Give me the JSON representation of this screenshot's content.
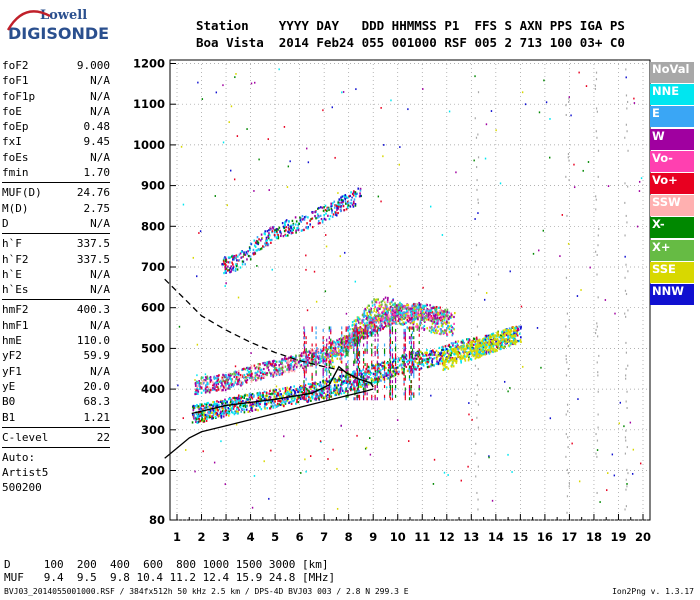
{
  "logo": {
    "line1": "Lowell",
    "line2": "DIGISONDE"
  },
  "header": {
    "labels": "Station    YYYY DAY   DDD HHMMSS P1  FFS S AXN PPS IGA PS",
    "values": "Boa Vista  2014 Feb24 055 001000 RSF 005 2 713 100 03+ C0"
  },
  "params": {
    "group1": [
      {
        "k": "foF2",
        "v": "9.000"
      },
      {
        "k": "foF1",
        "v": "N/A"
      },
      {
        "k": "foF1p",
        "v": "N/A"
      },
      {
        "k": "foE",
        "v": "N/A"
      },
      {
        "k": "foEp",
        "v": "0.48"
      },
      {
        "k": "fxI",
        "v": "9.45"
      },
      {
        "k": "foEs",
        "v": "N/A"
      },
      {
        "k": "fmin",
        "v": "1.70"
      }
    ],
    "group2": [
      {
        "k": "MUF(D)",
        "v": "24.76"
      },
      {
        "k": "M(D)",
        "v": "2.75"
      },
      {
        "k": "D",
        "v": "N/A"
      }
    ],
    "group3": [
      {
        "k": "h`F",
        "v": "337.5"
      },
      {
        "k": "h`F2",
        "v": "337.5"
      },
      {
        "k": "h`E",
        "v": "N/A"
      },
      {
        "k": "h`Es",
        "v": "N/A"
      }
    ],
    "group4": [
      {
        "k": "hmF2",
        "v": "400.3"
      },
      {
        "k": "hmF1",
        "v": "N/A"
      },
      {
        "k": "hmE",
        "v": "110.0"
      },
      {
        "k": "yF2",
        "v": "59.9"
      },
      {
        "k": "yF1",
        "v": "N/A"
      },
      {
        "k": "yE",
        "v": "20.0"
      },
      {
        "k": "B0",
        "v": "68.3"
      },
      {
        "k": "B1",
        "v": "1.21"
      }
    ],
    "group5": [
      {
        "k": "C-level",
        "v": "22"
      }
    ],
    "auto_lines": [
      "Auto:",
      "Artist5",
      "500200"
    ]
  },
  "legend": [
    {
      "label": "NoVal",
      "color": "#a8a8a8"
    },
    {
      "label": "NNE",
      "color": "#00e6f0"
    },
    {
      "label": "E",
      "color": "#3aa6f5"
    },
    {
      "label": "W",
      "color": "#a000a0"
    },
    {
      "label": "Vo-",
      "color": "#ff40b0"
    },
    {
      "label": "Vo+",
      "color": "#e80020"
    },
    {
      "label": "SSW",
      "color": "#ffb0b0"
    },
    {
      "label": "X-",
      "color": "#008800"
    },
    {
      "label": "X+",
      "color": "#66bb44"
    },
    {
      "label": "SSE",
      "color": "#d8d800"
    },
    {
      "label": "NNW",
      "color": "#1010d0"
    }
  ],
  "bottom": {
    "d_line": "D     100  200  400  600  800 1000 1500 3000 [km]",
    "mhz_line": "MUF   9.4  9.5  9.8 10.4 11.2 12.4 15.9 24.8 [MHz]"
  },
  "footer": {
    "left": "BVJ03_2014055001000.RSF / 384fx512h 50 kHz 2.5 km / DPS-4D BVJ03 003 / 2.8 N 299.3 E",
    "right": "Ion2Png v. 1.3.17"
  },
  "chart_data": {
    "type": "scatter",
    "x_ticks": [
      1,
      2,
      3,
      4,
      5,
      6,
      7,
      8,
      9,
      10,
      11,
      12,
      13,
      14,
      15,
      16,
      17,
      18,
      19,
      20
    ],
    "y_ticks": [
      80,
      200,
      300,
      400,
      500,
      600,
      700,
      800,
      900,
      1000,
      1100,
      1200
    ],
    "xlim": [
      0.5,
      20.5
    ],
    "ylim": [
      80,
      1200
    ],
    "grid": true,
    "o_trace_virtual": [
      [
        1.6,
        405
      ],
      [
        3,
        415
      ],
      [
        4,
        425
      ],
      [
        5,
        440
      ],
      [
        6,
        455
      ],
      [
        7,
        470
      ],
      [
        7.7,
        500
      ],
      [
        8,
        530
      ],
      [
        8.5,
        560
      ],
      [
        9,
        595
      ],
      [
        9.45,
        600
      ],
      [
        10.5,
        580
      ],
      [
        11.5,
        570
      ],
      [
        12.3,
        560
      ]
    ],
    "o_trace_lower": [
      [
        1.6,
        340
      ],
      [
        2.5,
        350
      ],
      [
        3.5,
        365
      ],
      [
        4.5,
        375
      ],
      [
        5.5,
        385
      ],
      [
        6.5,
        395
      ],
      [
        7.5,
        410
      ],
      [
        8.5,
        430
      ],
      [
        9.5,
        450
      ],
      [
        10.5,
        470
      ],
      [
        11.5,
        480
      ],
      [
        12.5,
        500
      ],
      [
        13.5,
        510
      ],
      [
        14.5,
        530
      ],
      [
        15,
        540
      ]
    ],
    "x_trace_upper": [
      [
        1.7,
        410
      ],
      [
        3,
        420
      ],
      [
        4,
        440
      ],
      [
        5,
        455
      ],
      [
        6,
        470
      ],
      [
        7,
        490
      ],
      [
        8,
        520
      ],
      [
        9,
        560
      ],
      [
        10,
        590
      ],
      [
        11,
        595
      ],
      [
        12,
        580
      ]
    ],
    "f2_echo_2hop": [
      [
        2.8,
        705
      ],
      [
        3.5,
        715
      ],
      [
        4.5,
        770
      ],
      [
        5.5,
        800
      ],
      [
        6.5,
        820
      ],
      [
        7.5,
        850
      ],
      [
        8.5,
        880
      ]
    ],
    "profile_solid": [
      [
        0.5,
        230
      ],
      [
        1,
        255
      ],
      [
        1.5,
        280
      ],
      [
        2,
        295
      ],
      [
        3,
        310
      ],
      [
        4,
        325
      ],
      [
        5,
        340
      ],
      [
        6,
        355
      ],
      [
        7,
        370
      ],
      [
        8,
        385
      ],
      [
        8.7,
        395
      ],
      [
        9,
        400.3
      ]
    ],
    "profile_dashed": [
      [
        0.5,
        670
      ],
      [
        1,
        640
      ],
      [
        1.5,
        610
      ],
      [
        2,
        580
      ],
      [
        3,
        545
      ],
      [
        4,
        515
      ],
      [
        5,
        490
      ],
      [
        6,
        470
      ],
      [
        7,
        455
      ],
      [
        7.8,
        445
      ]
    ],
    "model_trace": [
      [
        1.6,
        340
      ],
      [
        3,
        360
      ],
      [
        5,
        375
      ],
      [
        6.5,
        390
      ],
      [
        7.2,
        410
      ],
      [
        7.6,
        455
      ],
      [
        7.9,
        440
      ],
      [
        8.4,
        425
      ],
      [
        8.9,
        415
      ],
      [
        9,
        405
      ]
    ]
  }
}
